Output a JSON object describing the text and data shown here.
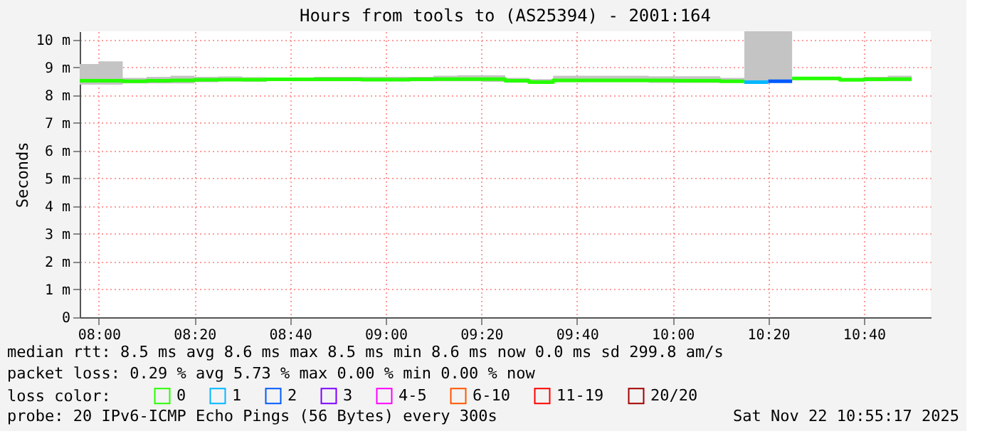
{
  "chart_data": {
    "type": "step",
    "title": "Hours from tools to (AS25394) - 2001:164",
    "ylabel": "Seconds",
    "x": [
      7.933333,
      8,
      8.083333,
      8.166667,
      8.25,
      8.333333,
      8.416667,
      8.5,
      8.583333,
      8.666667,
      8.75,
      8.833333,
      8.916667,
      9,
      9.083333,
      9.166667,
      9.25,
      9.333333,
      9.416667,
      9.5,
      9.583333,
      9.666667,
      9.75,
      9.833333,
      9.916667,
      10,
      10.083333,
      10.166667,
      10.25,
      10.333333,
      10.416667,
      10.5,
      10.583333,
      10.666667,
      10.75,
      10.833333
    ],
    "series": [
      {
        "name": "0",
        "color": "#26ff00",
        "values": [
          8.52,
          8.52,
          8.5,
          8.52,
          8.53,
          8.55,
          8.56,
          8.56,
          8.57,
          8.57,
          8.57,
          8.57,
          8.56,
          8.56,
          8.57,
          8.58,
          8.58,
          8.58,
          8.52,
          8.47,
          8.53,
          8.53,
          8.53,
          8.53,
          8.53,
          8.52,
          8.52,
          8.5,
          8.5,
          null,
          8.6,
          8.6,
          8.55,
          8.57,
          8.58,
          8.58
        ],
        "lower": [
          8.38,
          8.38,
          8.42,
          8.42,
          8.42,
          8.47,
          8.5,
          8.48,
          8.52,
          8.5,
          8.5,
          8.5,
          8.5,
          8.5,
          8.5,
          8.5,
          8.5,
          8.48,
          8.45,
          8.42,
          8.47,
          8.47,
          8.47,
          8.47,
          8.44,
          8.44,
          8.44,
          8.44,
          8.45,
          8.48,
          8.55,
          8.55,
          8.5,
          8.5,
          8.5,
          8.5
        ],
        "upper": [
          9.12,
          9.22,
          8.62,
          8.66,
          8.7,
          8.66,
          8.67,
          8.65,
          8.63,
          8.63,
          8.66,
          8.66,
          8.66,
          8.66,
          8.66,
          8.7,
          8.72,
          8.72,
          8.62,
          8.58,
          8.7,
          8.7,
          8.7,
          8.7,
          8.68,
          8.68,
          8.68,
          8.62,
          10.3,
          10.3,
          8.65,
          8.65,
          8.62,
          8.66,
          8.7,
          8.7
        ]
      },
      {
        "name": "1",
        "color": "#00b8ff",
        "x": [
          10.25,
          10.333333
        ],
        "values": [
          8.47,
          8.47
        ]
      },
      {
        "name": "2",
        "color": "#0059ff",
        "x": [
          10.333333,
          10.416667
        ],
        "values": [
          8.5,
          8.5
        ]
      },
      {
        "name": "3",
        "color": "#7e00ff",
        "values": [
          null,
          null,
          null,
          null,
          null,
          null,
          null,
          null,
          null,
          null,
          null,
          null,
          null,
          null,
          null,
          null,
          null,
          null,
          null,
          null,
          null,
          null,
          null,
          null,
          null,
          null,
          null,
          null,
          null,
          null,
          null,
          null,
          null,
          null,
          null,
          null
        ]
      },
      {
        "name": "4-5",
        "color": "#ff00ff",
        "values": [
          null,
          null,
          null,
          null,
          null,
          null,
          null,
          null,
          null,
          null,
          null,
          null,
          null,
          null,
          null,
          null,
          null,
          null,
          null,
          null,
          null,
          null,
          null,
          null,
          null,
          null,
          null,
          null,
          null,
          null,
          null,
          null,
          null,
          null,
          null,
          null
        ]
      },
      {
        "name": "6-10",
        "color": "#ff5500",
        "values": [
          null,
          null,
          null,
          null,
          null,
          null,
          null,
          null,
          null,
          null,
          null,
          null,
          null,
          null,
          null,
          null,
          null,
          null,
          null,
          null,
          null,
          null,
          null,
          null,
          null,
          null,
          null,
          null,
          null,
          null,
          null,
          null,
          null,
          null,
          null,
          null
        ]
      },
      {
        "name": "11-19",
        "color": "#ff0000",
        "values": [
          null,
          null,
          null,
          null,
          null,
          null,
          null,
          null,
          null,
          null,
          null,
          null,
          null,
          null,
          null,
          null,
          null,
          null,
          null,
          null,
          null,
          null,
          null,
          null,
          null,
          null,
          null,
          null,
          null,
          null,
          null,
          null,
          null,
          null,
          null,
          null
        ]
      },
      {
        "name": "20/20",
        "color": "#a10000",
        "values": [
          null,
          null,
          null,
          null,
          null,
          null,
          null,
          null,
          null,
          null,
          null,
          null,
          null,
          null,
          null,
          null,
          null,
          null,
          null,
          null,
          null,
          null,
          null,
          null,
          null,
          null,
          null,
          null,
          null,
          null,
          null,
          null,
          null,
          null,
          null,
          null
        ]
      }
    ],
    "legend_title": "loss color:",
    "legend": "bottom",
    "xlim": [
      7.933333,
      10.9
    ],
    "xticks": [
      {
        "value": 8,
        "label": "08:00"
      },
      {
        "value": 8.333333,
        "label": "08:20"
      },
      {
        "value": 8.666667,
        "label": "08:40"
      },
      {
        "value": 9,
        "label": "09:00"
      },
      {
        "value": 9.333333,
        "label": "09:20"
      },
      {
        "value": 9.666667,
        "label": "09:40"
      },
      {
        "value": 10,
        "label": "10:00"
      },
      {
        "value": 10.333333,
        "label": "10:20"
      },
      {
        "value": 10.666667,
        "label": "10:40"
      }
    ],
    "ylim": [
      0,
      10.3
    ],
    "yticks": [
      0,
      {
        "value": 1,
        "label": "1 m"
      },
      {
        "value": 2,
        "label": "2 m"
      },
      {
        "value": 3,
        "label": "3 m"
      },
      {
        "value": 4,
        "label": "4 m"
      },
      {
        "value": 5,
        "label": "5 m"
      },
      {
        "value": 6,
        "label": "6 m"
      },
      {
        "value": 7,
        "label": "7 m"
      },
      {
        "value": 8,
        "label": "8 m"
      },
      {
        "value": 9,
        "label": "9 m"
      },
      {
        "value": 10,
        "label": "10 m"
      }
    ],
    "grid": true,
    "annotations": [
      "median rtt:  8.5 ms avg  8.6 ms max  8.5 ms min  8.6 ms now  0.0 ms sd  299.8   am/s",
      "packet loss: 0.29 % avg  5.73 % max  0.00 % min  0.00 % now",
      "probe:       20 IPv6-ICMP Echo Pings (56 Bytes) every 300s",
      "Sat Nov 22 10:55:17 2025"
    ]
  }
}
